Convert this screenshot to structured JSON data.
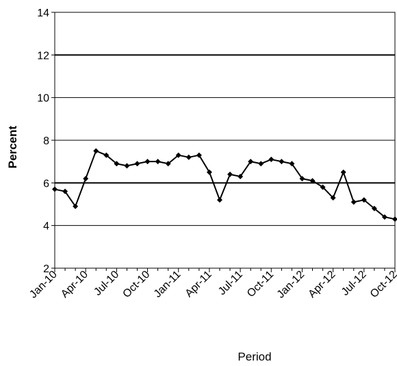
{
  "chart_data": {
    "type": "line",
    "title": "",
    "xlabel": "Period",
    "ylabel": "Percent",
    "ylim": [
      2,
      14
    ],
    "yticks": [
      2,
      4,
      6,
      8,
      10,
      12,
      14
    ],
    "major_gridlines": [
      6,
      12
    ],
    "grid": true,
    "legend": "none",
    "x_tick_labels": [
      "Jan-10",
      "Apr-10",
      "Jul-10",
      "Oct-10",
      "Jan-11",
      "Apr-11",
      "Jul-11",
      "Oct-11",
      "Jan-12",
      "Apr-12",
      "Jul-12",
      "Oct-12"
    ],
    "x": [
      "Jan-10",
      "Feb-10",
      "Mar-10",
      "Apr-10",
      "May-10",
      "Jun-10",
      "Jul-10",
      "Aug-10",
      "Sep-10",
      "Oct-10",
      "Nov-10",
      "Dec-10",
      "Jan-11",
      "Feb-11",
      "Mar-11",
      "Apr-11",
      "May-11",
      "Jun-11",
      "Jul-11",
      "Aug-11",
      "Sep-11",
      "Oct-11",
      "Nov-11",
      "Dec-11",
      "Jan-12",
      "Feb-12",
      "Mar-12",
      "Apr-12",
      "May-12",
      "Jun-12",
      "Jul-12",
      "Aug-12",
      "Sep-12",
      "Oct-12"
    ],
    "series": [
      {
        "color": "#000000",
        "values": [
          5.7,
          5.6,
          4.9,
          6.2,
          7.5,
          7.3,
          6.9,
          6.8,
          6.9,
          7.0,
          7.0,
          6.9,
          7.3,
          7.2,
          7.3,
          6.5,
          5.2,
          6.4,
          6.3,
          7.0,
          6.9,
          7.1,
          7.0,
          6.9,
          6.2,
          6.1,
          5.8,
          5.3,
          6.5,
          5.1,
          5.2,
          4.8,
          4.4,
          4.3
        ]
      }
    ]
  }
}
